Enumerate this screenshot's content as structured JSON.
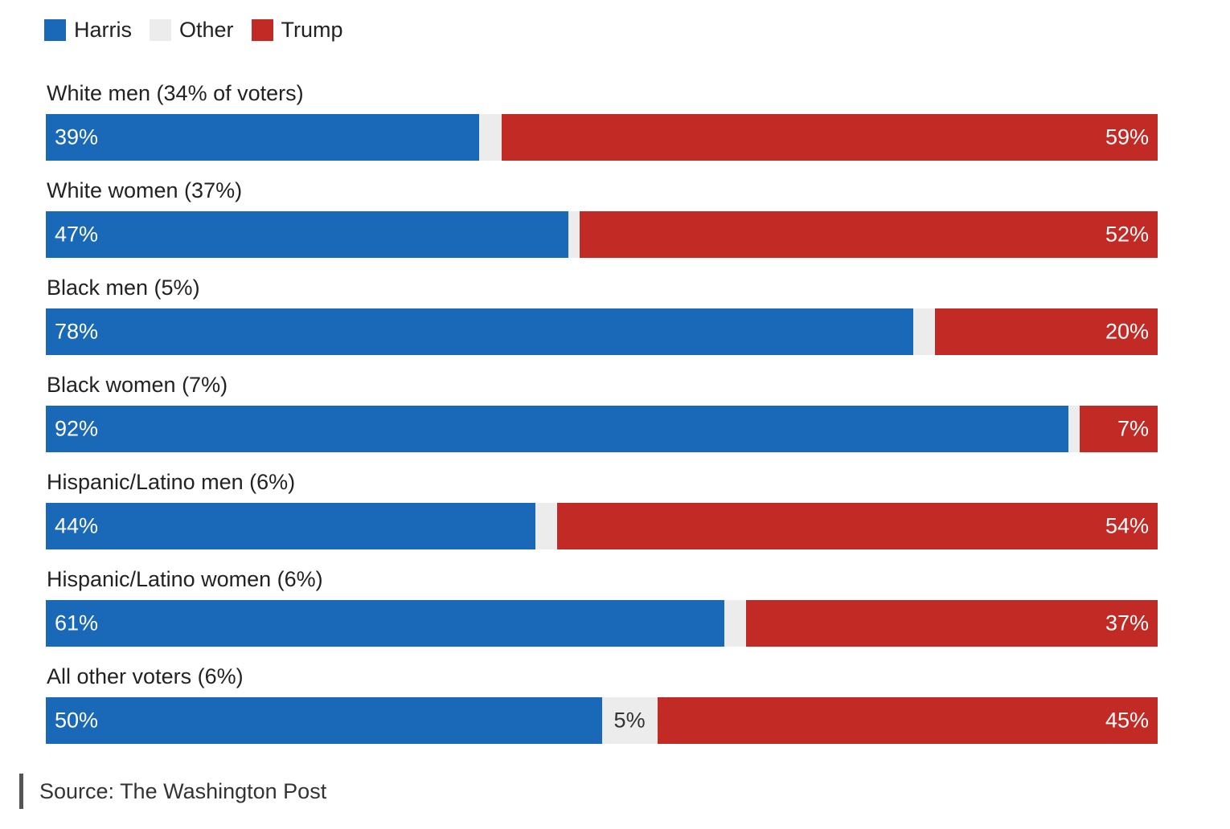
{
  "legend": [
    {
      "name": "Harris",
      "color": "#1a68b8"
    },
    {
      "name": "Other",
      "color": "#ececec"
    },
    {
      "name": "Trump",
      "color": "#c12a25"
    }
  ],
  "chart_data": {
    "type": "bar",
    "orientation": "horizontal-stacked",
    "categories": [
      "White men (34% of voters)",
      "White women (37%)",
      "Black men (5%)",
      "Black women (7%)",
      "Hispanic/Latino men (6%)",
      "Hispanic/Latino women (6%)",
      "All other voters (6%)"
    ],
    "series": [
      {
        "name": "Harris",
        "color": "#1a68b8",
        "values": [
          39,
          47,
          78,
          92,
          44,
          61,
          50
        ]
      },
      {
        "name": "Other",
        "color": "#ececec",
        "values": [
          2,
          1,
          2,
          1,
          2,
          2,
          5
        ]
      },
      {
        "name": "Trump",
        "color": "#c12a25",
        "values": [
          59,
          52,
          20,
          7,
          54,
          37,
          45
        ]
      }
    ],
    "labels": {
      "Harris": [
        "39%",
        "47%",
        "78%",
        "92%",
        "44%",
        "61%",
        "50%"
      ],
      "Other": [
        "",
        "",
        "",
        "",
        "",
        "",
        "5%"
      ],
      "Trump": [
        "59%",
        "52%",
        "20%",
        "7%",
        "54%",
        "37%",
        "45%"
      ]
    },
    "xlim": [
      0,
      100
    ],
    "legend_position": "top-left",
    "grid": false
  },
  "source": "Source: The Washington Post"
}
